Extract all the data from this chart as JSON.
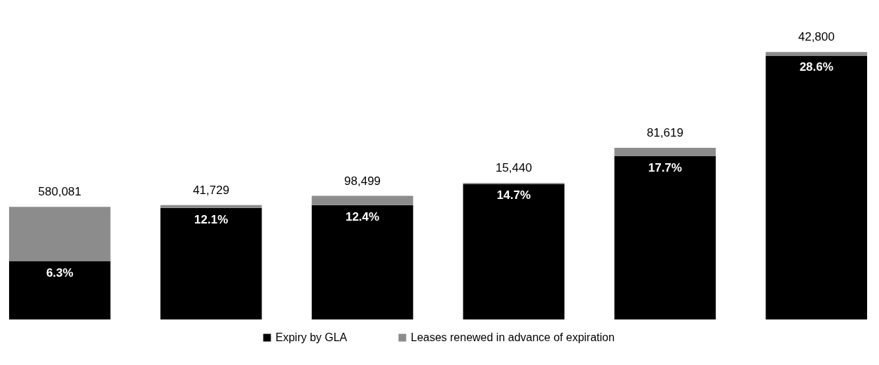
{
  "chart_data": {
    "type": "bar",
    "stacked": true,
    "categories": [
      null,
      null,
      null,
      null,
      null,
      null
    ],
    "tick_labels": false,
    "grid": false,
    "legend": "bottom",
    "series": [
      {
        "name": "Expiry by GLA",
        "color": "#000000",
        "values": [
          6.3,
          12.1,
          12.4,
          14.7,
          17.7,
          28.6
        ],
        "value_labels": [
          "6.3%",
          "12.1%",
          "12.4%",
          "14.7%",
          "17.7%",
          "28.6%"
        ]
      },
      {
        "name": "Leases renewed in advance of expiration",
        "color": "#8c8c8c",
        "values": [
          5.9,
          0.3,
          1.0,
          0.1,
          0.9,
          0.4
        ]
      }
    ],
    "annotations": [
      "580,081",
      "41,729",
      "98,499",
      "15,440",
      "81,619",
      "42,800"
    ]
  }
}
